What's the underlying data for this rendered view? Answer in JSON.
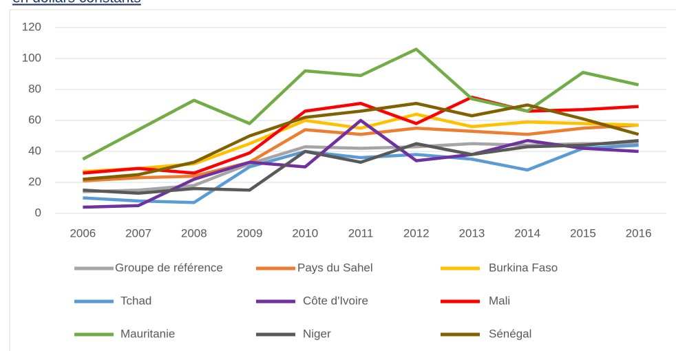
{
  "chart_data": {
    "type": "line",
    "title": "en dollars constants",
    "categories": [
      "2006",
      "2007",
      "2008",
      "2009",
      "2010",
      "2011",
      "2012",
      "2013",
      "2014",
      "2015",
      "2016"
    ],
    "ylim": [
      0,
      120
    ],
    "yticks": [
      0,
      20,
      40,
      60,
      80,
      100,
      120
    ],
    "grid": true,
    "legend": "bottom",
    "series": [
      {
        "name": "Groupe de référence",
        "color": "#a5a5a5",
        "values": [
          14,
          15,
          18,
          32,
          43,
          42,
          43,
          45,
          44,
          45,
          45
        ]
      },
      {
        "name": "Pays du Sahel",
        "color": "#ed7d31",
        "values": [
          21,
          23,
          24,
          33,
          54,
          51,
          55,
          53,
          51,
          55,
          57
        ]
      },
      {
        "name": "Burkina Faso",
        "color": "#ffc000",
        "values": [
          27,
          29,
          32,
          45,
          60,
          55,
          64,
          56,
          59,
          58,
          57
        ]
      },
      {
        "name": "Tchad",
        "color": "#5b9bd5",
        "values": [
          10,
          8,
          7,
          30,
          40,
          36,
          38,
          35,
          28,
          42,
          44
        ]
      },
      {
        "name": "Côte d'Ivoire",
        "color": "#7030a0",
        "values": [
          4,
          5,
          22,
          33,
          30,
          60,
          34,
          38,
          47,
          42,
          40
        ]
      },
      {
        "name": "Mali",
        "color": "#ff0000",
        "values": [
          26,
          29,
          26,
          39,
          66,
          71,
          58,
          75,
          66,
          67,
          69
        ]
      },
      {
        "name": "Mauritanie",
        "color": "#70ad47",
        "values": [
          35,
          54,
          73,
          58,
          92,
          89,
          106,
          74,
          66,
          91,
          83
        ]
      },
      {
        "name": "Niger",
        "color": "#595959",
        "values": [
          15,
          13,
          16,
          15,
          40,
          33,
          45,
          38,
          43,
          44,
          47
        ]
      },
      {
        "name": "Sénégal",
        "color": "#806000",
        "values": [
          22,
          25,
          33,
          50,
          62,
          66,
          71,
          63,
          70,
          61,
          51
        ]
      }
    ]
  }
}
